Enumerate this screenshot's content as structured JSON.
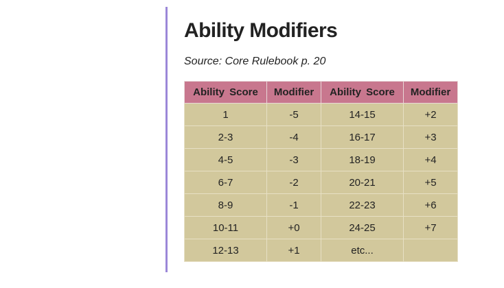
{
  "title": "Ability Modifiers",
  "source": "Source: Core Rulebook p. 20",
  "table": {
    "headers": [
      "Ability Score",
      "Modifier",
      "Ability Score",
      "Modifier"
    ],
    "rows": [
      [
        "1",
        "-5",
        "14-15",
        "+2"
      ],
      [
        "2-3",
        "-4",
        "16-17",
        "+3"
      ],
      [
        "4-5",
        "-3",
        "18-19",
        "+4"
      ],
      [
        "6-7",
        "-2",
        "20-21",
        "+5"
      ],
      [
        "8-9",
        "-1",
        "22-23",
        "+6"
      ],
      [
        "10-11",
        "+0",
        "24-25",
        "+7"
      ],
      [
        "12-13",
        "+1",
        "etc...",
        ""
      ]
    ]
  },
  "colors": {
    "accent_bar": "#9b87d8",
    "header_bg": "#c8778e",
    "cell_bg": "#d2c89c"
  }
}
